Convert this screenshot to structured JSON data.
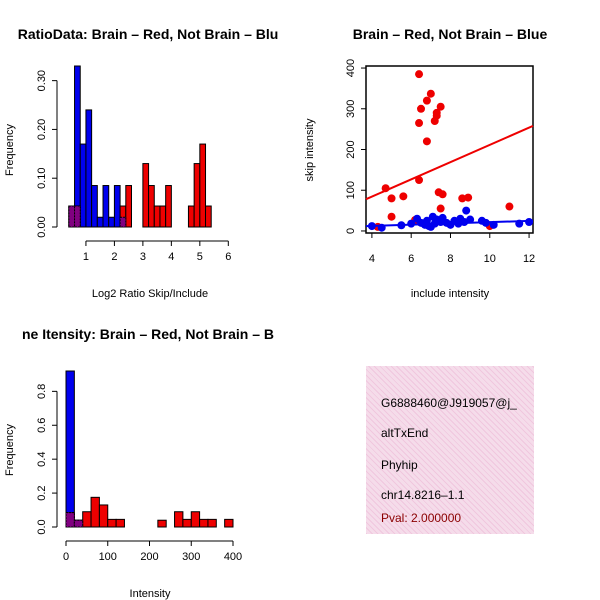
{
  "colors": {
    "red": "#ee0000",
    "blue": "#0000ee",
    "overlap": "#800080",
    "panel": "#f5dcea"
  },
  "chart_data": [
    {
      "type": "bar",
      "subtype": "histogram",
      "title": "RatioData: Brain – Red, Not Brain – Blue",
      "title_shown": "RatioData: Brain – Red, Not Brain – Blu",
      "xlabel": "Log2 Ratio Skip/Include",
      "ylabel": "Frequency",
      "xlim": [
        0.3,
        6.2
      ],
      "ylim": [
        0,
        0.33
      ],
      "xticks": [
        "1",
        "2",
        "3",
        "4",
        "5",
        "6"
      ],
      "xtick_values": [
        1,
        2,
        3,
        4,
        5,
        6
      ],
      "yticks": [
        "0.00",
        "0.10",
        "0.20",
        "0.30"
      ],
      "ytick_values": [
        0,
        0.1,
        0.2,
        0.3
      ],
      "bin_width": 0.2,
      "series": [
        {
          "name": "Brain",
          "color": "red",
          "bins": [
            0.5,
            0.7,
            0.9,
            1.1,
            1.3,
            1.5,
            1.7,
            1.9,
            2.1,
            2.3,
            2.5,
            2.7,
            2.9,
            3.1,
            3.3,
            3.5,
            3.7,
            3.9,
            4.1,
            4.3,
            4.5,
            4.7,
            4.9,
            5.1,
            5.3,
            5.5,
            5.7,
            5.9
          ],
          "values": [
            0.043,
            0.043,
            0,
            0,
            0,
            0,
            0,
            0,
            0,
            0.043,
            0.085,
            0,
            0,
            0.13,
            0.085,
            0.043,
            0.043,
            0.085,
            0,
            0,
            0,
            0.043,
            0.13,
            0.17,
            0.043,
            0,
            0,
            0
          ]
        },
        {
          "name": "Not Brain",
          "color": "blue",
          "bins": [
            0.5,
            0.7,
            0.9,
            1.1,
            1.3,
            1.5,
            1.7,
            1.9,
            2.1,
            2.3
          ],
          "values": [
            0.043,
            0.33,
            0.17,
            0.24,
            0.085,
            0.02,
            0.085,
            0.02,
            0.085,
            0.02
          ]
        }
      ]
    },
    {
      "type": "scatter",
      "title": "Brain – Red, Not Brain – Blue",
      "xlabel": "include intensity",
      "ylabel": "skip intensity",
      "xlim": [
        3.7,
        12.2
      ],
      "ylim": [
        -5,
        405
      ],
      "xticks": [
        "4",
        "6",
        "8",
        "10",
        "12"
      ],
      "xtick_values": [
        4,
        6,
        8,
        10,
        12
      ],
      "yticks": [
        "0",
        "100",
        "200",
        "300",
        "400"
      ],
      "ytick_values": [
        0,
        100,
        200,
        300,
        400
      ],
      "series": [
        {
          "name": "Brain",
          "color": "red",
          "x": [
            6.4,
            6.8,
            7.0,
            7.5,
            6.5,
            7.3,
            7.2,
            6.4,
            7.3,
            6.8,
            6.4,
            7.4,
            7.6,
            4.7,
            5.0,
            5.6,
            5.0,
            7.5,
            8.6,
            8.9,
            11.0,
            6.2,
            4.3,
            10.0
          ],
          "y": [
            385,
            320,
            337,
            305,
            300,
            290,
            270,
            265,
            283,
            220,
            125,
            95,
            90,
            105,
            80,
            85,
            35,
            55,
            80,
            82,
            60,
            27,
            10,
            12
          ],
          "trend": [
            3.7,
            78,
            12.2,
            258
          ]
        },
        {
          "name": "Not Brain",
          "color": "blue",
          "x": [
            4.0,
            4.5,
            5.5,
            6.0,
            6.3,
            6.5,
            6.7,
            6.8,
            7.0,
            7.2,
            7.3,
            7.5,
            7.6,
            7.8,
            8.0,
            8.2,
            8.4,
            8.5,
            8.7,
            8.8,
            9.0,
            9.6,
            9.8,
            10.2,
            11.5,
            12.0,
            7.1,
            6.9
          ],
          "y": [
            12,
            8,
            14,
            18,
            30,
            20,
            15,
            25,
            10,
            18,
            28,
            22,
            32,
            20,
            15,
            25,
            18,
            30,
            22,
            50,
            28,
            25,
            20,
            15,
            18,
            22,
            35,
            12
          ],
          "trend": [
            3.7,
            12,
            12.2,
            25
          ]
        }
      ]
    },
    {
      "type": "bar",
      "subtype": "histogram",
      "title": "Gene Itensity: Brain – Red, Not Brain – Blue",
      "title_shown": "ne Itensity: Brain – Red, Not Brain – B",
      "xlabel": "Intensity",
      "ylabel": "Frequency",
      "xlim": [
        0,
        400
      ],
      "ylim": [
        0,
        0.92
      ],
      "xticks": [
        "0",
        "100",
        "200",
        "300",
        "400"
      ],
      "xtick_values": [
        0,
        100,
        200,
        300,
        400
      ],
      "yticks": [
        "0.0",
        "0.2",
        "0.4",
        "0.6",
        "0.8"
      ],
      "ytick_values": [
        0,
        0.2,
        0.4,
        0.6,
        0.8
      ],
      "bin_width": 20,
      "series": [
        {
          "name": "Brain",
          "color": "red",
          "bins": [
            10,
            30,
            50,
            70,
            90,
            110,
            130,
            150,
            170,
            190,
            210,
            230,
            250,
            270,
            290,
            310,
            330,
            350,
            370,
            390
          ],
          "values": [
            0.085,
            0.04,
            0.09,
            0.175,
            0.13,
            0.045,
            0.045,
            0,
            0,
            0,
            0,
            0.04,
            0,
            0.09,
            0.045,
            0.09,
            0.045,
            0.045,
            0,
            0.045
          ]
        },
        {
          "name": "Not Brain",
          "color": "blue",
          "bins": [
            10,
            30
          ],
          "values": [
            0.92,
            0.04
          ]
        }
      ]
    }
  ],
  "info": {
    "id": "G6888460@J919057@j_",
    "type": "altTxEnd",
    "gene": "Phyhip",
    "location": "chr14.8216–1.1",
    "pval": "Pval: 2.000000"
  }
}
